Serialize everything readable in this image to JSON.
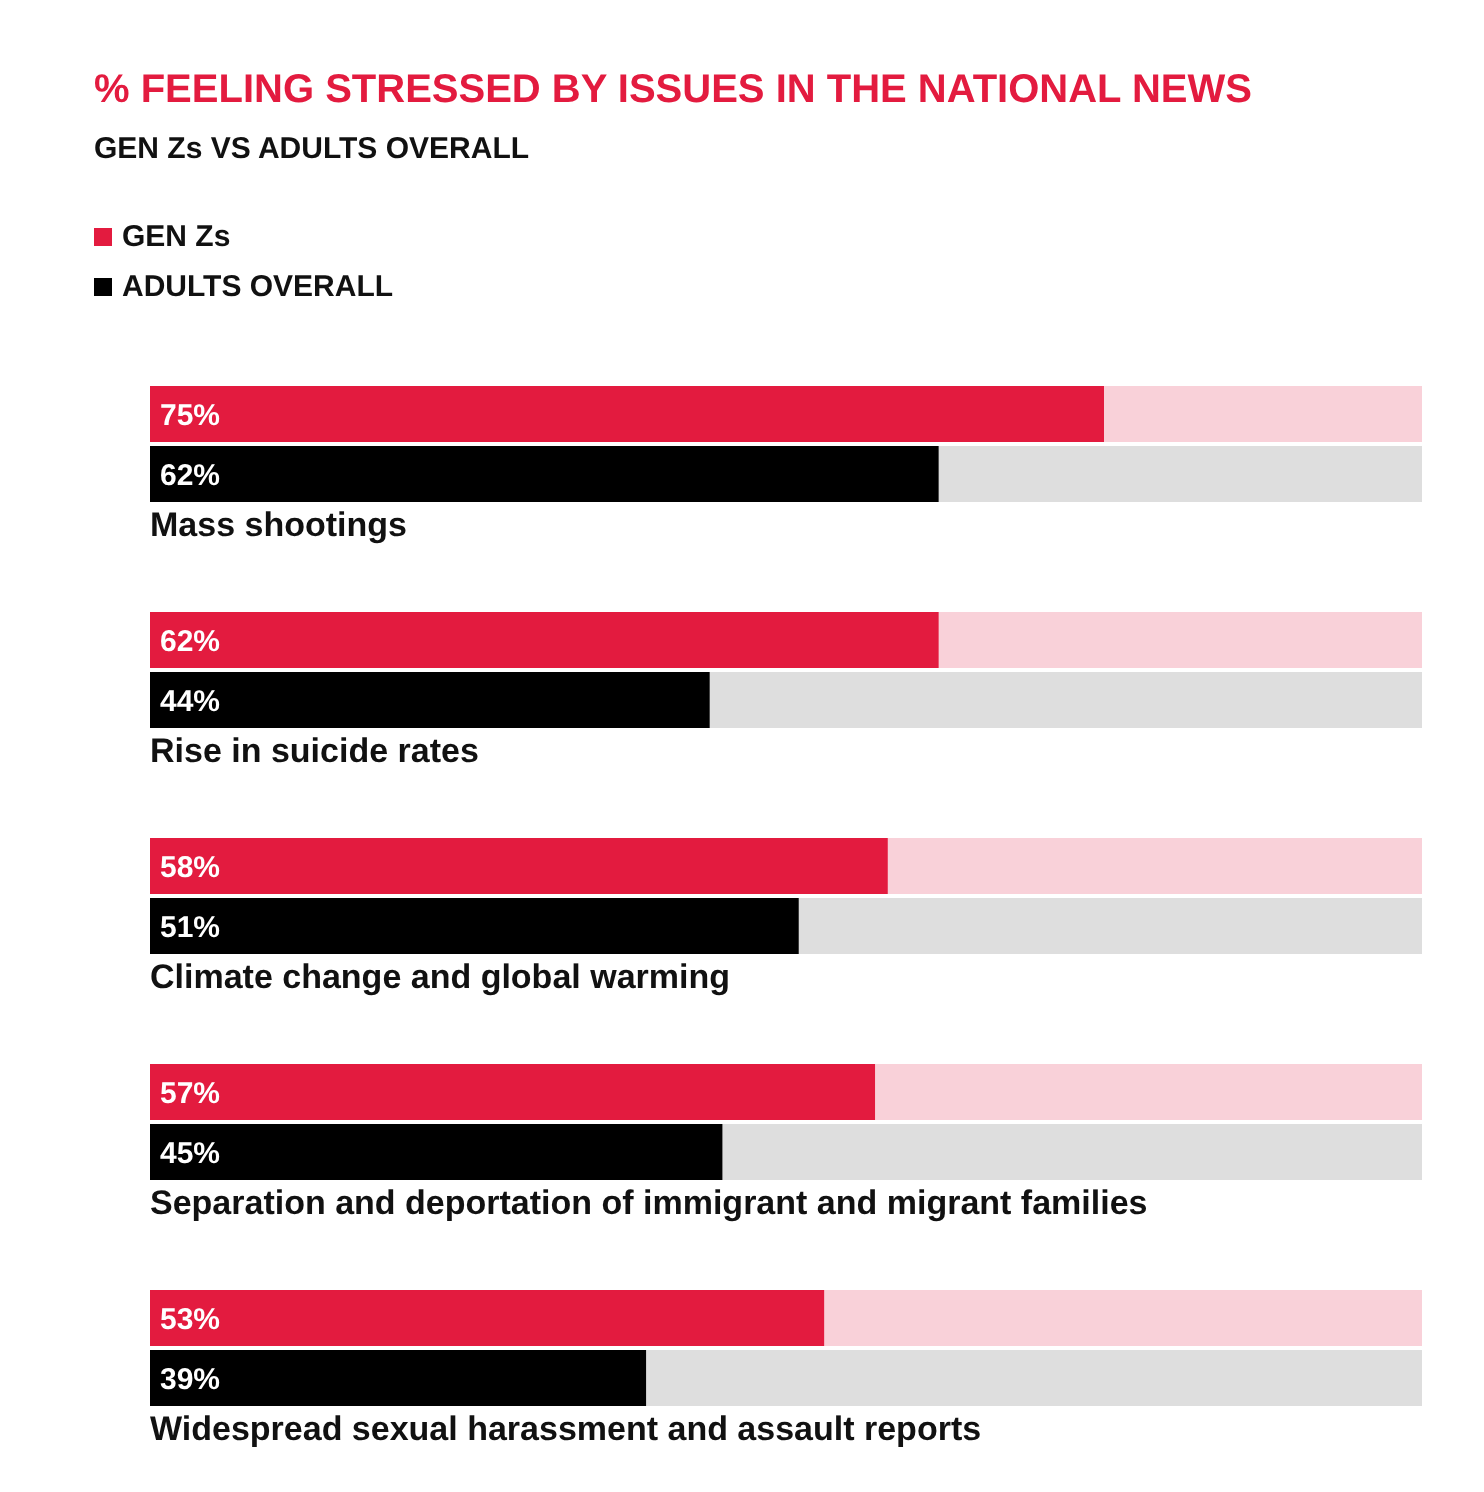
{
  "chart_data": {
    "type": "bar",
    "orientation": "horizontal",
    "title": "% FEELING STRESSED BY ISSUES IN THE NATIONAL NEWS",
    "subtitle": "GEN Zs VS ADULTS OVERALL",
    "categories": [
      "Mass shootings",
      "Rise in suicide rates",
      "Climate change and global warming",
      "Separation and deportation of immigrant and migrant families",
      "Widespread sexual harassment and assault reports"
    ],
    "series": [
      {
        "name": "GEN Zs",
        "color": "#e31b3f",
        "values": [
          75,
          62,
          58,
          57,
          53
        ],
        "value_labels": [
          "75%",
          "62%",
          "58%",
          "57%",
          "53%"
        ]
      },
      {
        "name": "ADULTS OVERALL",
        "color": "#000000",
        "values": [
          62,
          44,
          51,
          45,
          39
        ],
        "value_labels": [
          "62%",
          "44%",
          "51%",
          "45%",
          "39%"
        ]
      }
    ],
    "xlim": [
      0,
      100
    ],
    "tick_labels": "y",
    "grid": false,
    "legend": "top left"
  }
}
